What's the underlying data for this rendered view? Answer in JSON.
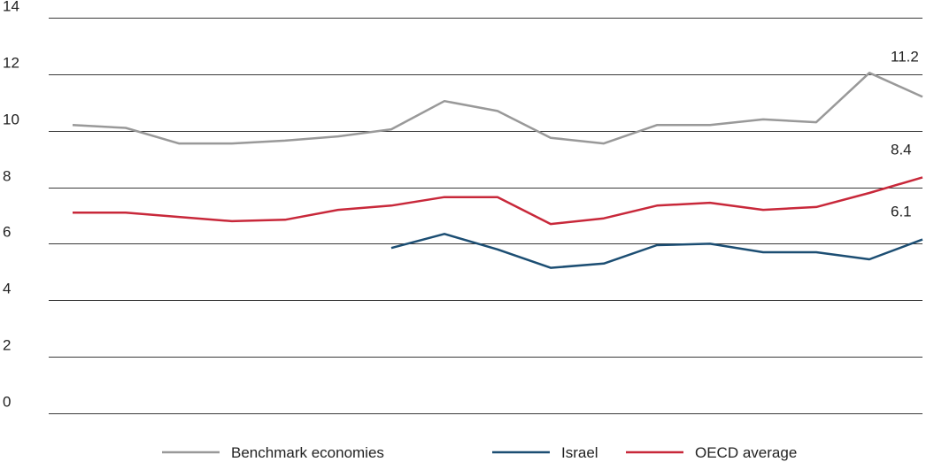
{
  "chart_data": {
    "type": "line",
    "title": "",
    "xlabel": "",
    "ylabel": "",
    "ylim": [
      0,
      14
    ],
    "y_ticks": [
      0,
      2,
      4,
      6,
      8,
      10,
      12,
      14
    ],
    "grid": true,
    "legend_position": "bottom",
    "series": [
      {
        "name": "Benchmark economies",
        "color": "#999999",
        "values": [
          10.2,
          10.1,
          9.55,
          9.55,
          9.65,
          9.8,
          10.05,
          11.05,
          10.7,
          9.75,
          9.55,
          10.2,
          10.2,
          10.4,
          10.3,
          12.05,
          11.2
        ],
        "end_label": "11.2"
      },
      {
        "name": "Israel",
        "color": "#1c4e73",
        "values": [
          null,
          null,
          null,
          null,
          null,
          null,
          5.85,
          6.35,
          5.8,
          5.15,
          5.3,
          5.95,
          6.0,
          5.7,
          5.7,
          5.45,
          6.15
        ],
        "end_label": "6.1"
      },
      {
        "name": "OECD average",
        "color": "#c8283a",
        "values": [
          7.1,
          7.1,
          6.95,
          6.8,
          6.85,
          7.2,
          7.35,
          7.65,
          7.65,
          6.7,
          6.9,
          7.35,
          7.45,
          7.2,
          7.3,
          7.8,
          8.35
        ],
        "end_label": "8.4"
      }
    ]
  }
}
